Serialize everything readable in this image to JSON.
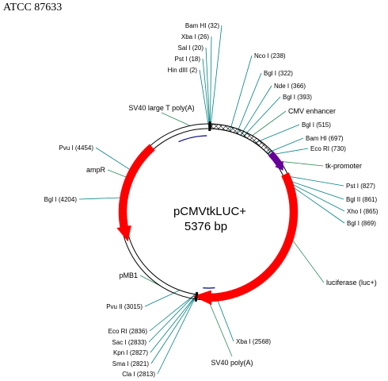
{
  "header": {
    "title": "ATCC 87633"
  },
  "plasmid": {
    "name": "pCMVtkLUC+",
    "size_text": "5376 bp"
  },
  "colors": {
    "backbone": "#000000",
    "arrow": "#ff0000",
    "promoter": "#660099",
    "site_line": "#008080",
    "feature_line": "#2e8b57",
    "region_arc": "#000080"
  },
  "sites": [
    {
      "key": "bamhi_32",
      "label": "Bam HI (32)"
    },
    {
      "key": "xbai_26",
      "label": "Xba I (26)"
    },
    {
      "key": "sali_20",
      "label": "Sal I (20)"
    },
    {
      "key": "psti_18",
      "label": "Pst I (18)"
    },
    {
      "key": "hindiii_2",
      "label": "Hin dIII (2)"
    },
    {
      "key": "ncoi_238",
      "label": "Nco I (238)"
    },
    {
      "key": "bgli_322",
      "label": "Bgl I (322)"
    },
    {
      "key": "ndei_366",
      "label": "Nde I (366)"
    },
    {
      "key": "bgli_393",
      "label": "Bgl I (393)"
    },
    {
      "key": "bgli_515",
      "label": "Bgl I (515)"
    },
    {
      "key": "bamhi_697",
      "label": "Bam HI (697)"
    },
    {
      "key": "ecori_730",
      "label": "Eco RI (730)"
    },
    {
      "key": "psti_827",
      "label": "Pst I (827)"
    },
    {
      "key": "bglii_861",
      "label": "Bgl II (861)"
    },
    {
      "key": "xhoi_865",
      "label": "Xho I (865)"
    },
    {
      "key": "bgli_869",
      "label": "Bgl I (869)"
    },
    {
      "key": "xbai_2568",
      "label": "Xba I (2568)"
    },
    {
      "key": "ecori_2836",
      "label": "Eco RI (2836)"
    },
    {
      "key": "saci_2833",
      "label": "Sac I (2833)"
    },
    {
      "key": "kpni_2827",
      "label": "Kpn I (2827)"
    },
    {
      "key": "smai_2821",
      "label": "Sma I (2821)"
    },
    {
      "key": "clai_2813",
      "label": "Cla I (2813)"
    },
    {
      "key": "pvuii_3015",
      "label": "Pvu II (3015)"
    },
    {
      "key": "bgli_4204",
      "label": "Bgl I (4204)"
    },
    {
      "key": "pvui_4454",
      "label": "Pvu I (4454)"
    }
  ],
  "features": [
    {
      "key": "sv40_large_t",
      "label": "SV40 large T poly(A)"
    },
    {
      "key": "cmv_enhancer",
      "label": "CMV enhancer"
    },
    {
      "key": "tk_promoter",
      "label": "tk-promoter"
    },
    {
      "key": "luciferase",
      "label": "luciferase (luc+)"
    },
    {
      "key": "sv40_polya",
      "label": "SV40 poly(A)"
    },
    {
      "key": "pmb1",
      "label": "pMB1"
    },
    {
      "key": "ampr",
      "label": "ampR"
    }
  ]
}
